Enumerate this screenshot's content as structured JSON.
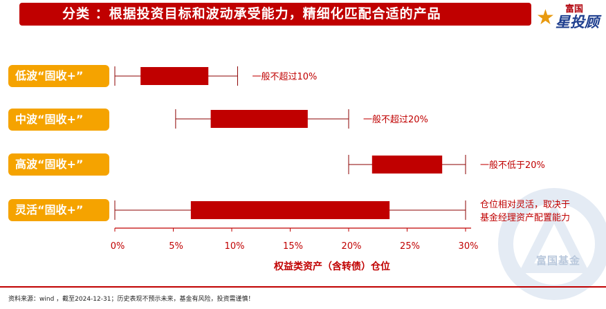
{
  "header": {
    "title": "分类 ：根据投资目标和波动承受能力，精细化匹配合适的产品",
    "logo_top": "富国",
    "logo_main": "星投顾",
    "logo_star": "★"
  },
  "watermark_text": "富国基金",
  "footnote": "资料来源：wind ，截至2024-12-31；历史表现不预示未来，基金有风险，投资需谨慎！",
  "colors": {
    "title_bg": "#c00000",
    "bar_fill": "#c00000",
    "label_bg": "#f5a300",
    "axis": "#c00000",
    "whisker": "#8b0000"
  },
  "chart_data": {
    "type": "box",
    "title": "",
    "xlabel": "权益类资产（含转债）仓位",
    "xlim": [
      0,
      30
    ],
    "xticks": [
      0,
      5,
      10,
      15,
      20,
      25,
      30
    ],
    "xtick_labels": [
      "0%",
      "5%",
      "10%",
      "15%",
      "20%",
      "25%",
      "30%"
    ],
    "categories": [
      "低波“固收+”",
      "中波“固收+”",
      "高波“固收+”",
      "灵活“固收+”"
    ],
    "series": [
      {
        "category": "低波“固收+”",
        "min": 0,
        "q1": 2.2,
        "q3": 8.0,
        "max": 10.5,
        "annotation": [
          "一般不超过10%"
        ]
      },
      {
        "category": "中波“固收+”",
        "min": 5.2,
        "q1": 8.2,
        "q3": 16.5,
        "max": 20.0,
        "annotation": [
          "一般不超过20%"
        ]
      },
      {
        "category": "高波“固收+”",
        "min": 20.0,
        "q1": 22.0,
        "q3": 28.0,
        "max": 30.0,
        "annotation": [
          "一般不低于20%"
        ]
      },
      {
        "category": "灵活“固收+”",
        "min": 0,
        "q1": 6.5,
        "q3": 23.5,
        "max": 30.0,
        "annotation": [
          "仓位相对灵活，取决于",
          "基金经理资产配置能力"
        ]
      }
    ]
  }
}
